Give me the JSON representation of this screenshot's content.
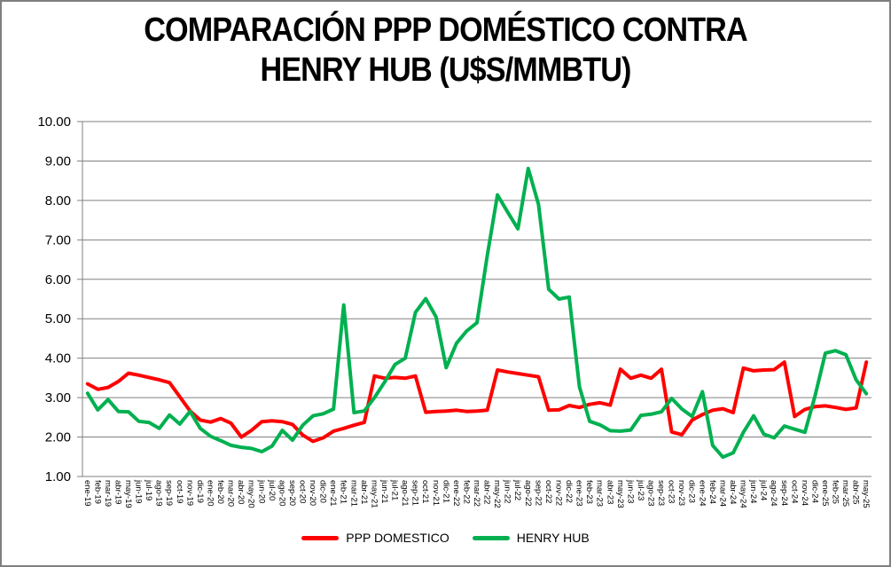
{
  "header": {
    "title_line1": "COMPARACIÓN PPP DOMÉSTICO CONTRA",
    "title_line2": "HENRY HUB (U$S/MMBTU)"
  },
  "chart_data": {
    "type": "line",
    "title": "COMPARACIÓN PPP DOMÉSTICO CONTRA HENRY HUB (U$S/MMBTU)",
    "xlabel": "",
    "ylabel": "",
    "ylim": [
      1,
      10
    ],
    "y_tick_labels": [
      "1.00",
      "2.00",
      "3.00",
      "4.00",
      "5.00",
      "6.00",
      "7.00",
      "8.00",
      "9.00",
      "10.00"
    ],
    "grid": "horizontal",
    "grid_color": "#808080",
    "axis_color": "#808080",
    "legend_position": "bottom",
    "categories": [
      "ene-19",
      "feb-19",
      "mar-19",
      "abr-19",
      "may-19",
      "jun-19",
      "jul-19",
      "ago-19",
      "sep-19",
      "oct-19",
      "nov-19",
      "dic-19",
      "ene-20",
      "feb-20",
      "mar-20",
      "abr-20",
      "may-20",
      "jun-20",
      "jul-20",
      "ago-20",
      "sep-20",
      "oct-20",
      "nov-20",
      "dic-20",
      "ene-21",
      "feb-21",
      "mar-21",
      "abr-21",
      "may-21",
      "jun-21",
      "jul-21",
      "ago-21",
      "sep-21",
      "oct-21",
      "nov-21",
      "dic-21",
      "ene-22",
      "feb-22",
      "mar-22",
      "abr-22",
      "may-22",
      "jun-22",
      "jul-22",
      "ago-22",
      "sep-22",
      "oct-22",
      "nov-22",
      "dic-22",
      "ene-23",
      "feb-23",
      "mar-23",
      "abr-23",
      "may-23",
      "jun-23",
      "jul-23",
      "ago-23",
      "sep-23",
      "oct-23",
      "nov-23",
      "dic-23",
      "ene-24",
      "feb-24",
      "mar-24",
      "abr-24",
      "may-24",
      "jun-24",
      "jul-24",
      "ago-24",
      "sep-24",
      "oct-24",
      "nov-24",
      "dic-24",
      "ene-25",
      "feb-25",
      "mar-25",
      "abr-25",
      "may-25"
    ],
    "series": [
      {
        "name": "PPP DOMESTICO",
        "color": "#FF0000",
        "values": [
          3.35,
          3.21,
          3.26,
          3.41,
          3.62,
          3.57,
          3.51,
          3.45,
          3.38,
          3.02,
          2.66,
          2.43,
          2.38,
          2.47,
          2.35,
          2.0,
          2.17,
          2.39,
          2.41,
          2.39,
          2.32,
          2.05,
          1.89,
          1.98,
          2.15,
          2.22,
          2.3,
          2.37,
          3.55,
          3.49,
          3.51,
          3.49,
          3.55,
          2.63,
          2.65,
          2.66,
          2.68,
          2.65,
          2.66,
          2.68,
          3.7,
          3.65,
          3.61,
          3.57,
          3.53,
          2.68,
          2.69,
          2.8,
          2.75,
          2.83,
          2.87,
          2.81,
          3.72,
          3.49,
          3.57,
          3.49,
          3.72,
          2.13,
          2.06,
          2.43,
          2.57,
          2.68,
          2.72,
          2.62,
          3.75,
          3.68,
          3.7,
          3.71,
          3.9,
          2.52,
          2.7,
          2.77,
          2.79,
          2.75,
          2.7,
          2.74,
          3.9
        ]
      },
      {
        "name": "HENRY HUB",
        "color": "#00B050",
        "values": [
          3.11,
          2.69,
          2.95,
          2.65,
          2.64,
          2.4,
          2.37,
          2.22,
          2.56,
          2.33,
          2.65,
          2.22,
          2.02,
          1.91,
          1.79,
          1.74,
          1.71,
          1.63,
          1.77,
          2.17,
          1.92,
          2.3,
          2.54,
          2.59,
          2.71,
          5.35,
          2.62,
          2.66,
          3.0,
          3.4,
          3.84,
          4.0,
          5.16,
          5.51,
          5.05,
          3.76,
          4.38,
          4.69,
          4.9,
          6.6,
          8.14,
          7.7,
          7.28,
          8.81,
          7.9,
          5.75,
          5.5,
          5.55,
          3.27,
          2.4,
          2.31,
          2.16,
          2.15,
          2.18,
          2.55,
          2.58,
          2.64,
          2.98,
          2.71,
          2.52,
          3.15,
          1.79,
          1.49,
          1.6,
          2.12,
          2.54,
          2.07,
          1.98,
          2.28,
          2.2,
          2.12,
          3.05,
          4.13,
          4.19,
          4.09,
          3.45,
          3.1
        ]
      }
    ]
  }
}
